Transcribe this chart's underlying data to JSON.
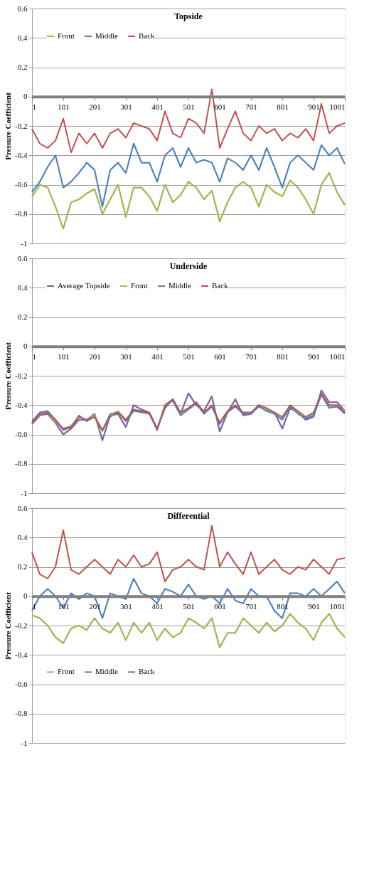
{
  "chart_data": [
    {
      "type": "line",
      "title": "Topside",
      "ylabel": "Pressure Coefficient",
      "x": [
        1,
        26,
        51,
        76,
        101,
        126,
        151,
        176,
        201,
        226,
        251,
        276,
        301,
        326,
        351,
        376,
        401,
        426,
        451,
        476,
        501,
        526,
        551,
        576,
        601,
        626,
        651,
        676,
        701,
        726,
        751,
        776,
        801,
        826,
        851,
        876,
        901,
        926,
        951,
        976,
        1001
      ],
      "xlim": [
        1,
        1001
      ],
      "xticks": [
        1,
        101,
        201,
        301,
        401,
        501,
        601,
        701,
        801,
        901,
        1001
      ],
      "ylim": [
        -1,
        0.6
      ],
      "yticks": [
        -1,
        -0.8,
        -0.6,
        -0.4,
        -0.2,
        0,
        0.2,
        0.4,
        0.6
      ],
      "grid": "y",
      "legend": "top left",
      "series": [
        {
          "name": "Front",
          "color": "#9bbb59",
          "values": [
            -0.68,
            -0.6,
            -0.62,
            -0.75,
            -0.9,
            -0.72,
            -0.7,
            -0.66,
            -0.63,
            -0.8,
            -0.7,
            -0.6,
            -0.82,
            -0.62,
            -0.62,
            -0.68,
            -0.78,
            -0.6,
            -0.72,
            -0.67,
            -0.58,
            -0.62,
            -0.7,
            -0.64,
            -0.85,
            -0.72,
            -0.62,
            -0.58,
            -0.62,
            -0.75,
            -0.6,
            -0.65,
            -0.68,
            -0.57,
            -0.62,
            -0.7,
            -0.8,
            -0.6,
            -0.52,
            -0.65,
            -0.74
          ]
        },
        {
          "name": "Middle",
          "color": "#4f81bd",
          "values": [
            -0.65,
            -0.58,
            -0.48,
            -0.4,
            -0.62,
            -0.58,
            -0.52,
            -0.45,
            -0.5,
            -0.75,
            -0.5,
            -0.45,
            -0.52,
            -0.32,
            -0.45,
            -0.45,
            -0.58,
            -0.4,
            -0.35,
            -0.48,
            -0.35,
            -0.45,
            -0.43,
            -0.45,
            -0.58,
            -0.42,
            -0.45,
            -0.5,
            -0.4,
            -0.5,
            -0.35,
            -0.48,
            -0.62,
            -0.45,
            -0.4,
            -0.45,
            -0.5,
            -0.33,
            -0.4,
            -0.35,
            -0.46
          ]
        },
        {
          "name": "Back",
          "color": "#c0504d",
          "values": [
            -0.22,
            -0.32,
            -0.35,
            -0.3,
            -0.15,
            -0.38,
            -0.25,
            -0.32,
            -0.25,
            -0.35,
            -0.25,
            -0.22,
            -0.28,
            -0.18,
            -0.2,
            -0.22,
            -0.3,
            -0.1,
            -0.25,
            -0.28,
            -0.15,
            -0.18,
            -0.25,
            0.05,
            -0.35,
            -0.22,
            -0.1,
            -0.25,
            -0.3,
            -0.2,
            -0.25,
            -0.22,
            -0.3,
            -0.25,
            -0.28,
            -0.22,
            -0.3,
            -0.05,
            -0.25,
            -0.2,
            -0.18
          ]
        }
      ]
    },
    {
      "type": "line",
      "title": "Underside",
      "ylabel": "Pressure Coefficient",
      "x": [
        1,
        26,
        51,
        76,
        101,
        126,
        151,
        176,
        201,
        226,
        251,
        276,
        301,
        326,
        351,
        376,
        401,
        426,
        451,
        476,
        501,
        526,
        551,
        576,
        601,
        626,
        651,
        676,
        701,
        726,
        751,
        776,
        801,
        826,
        851,
        876,
        901,
        926,
        951,
        976,
        1001
      ],
      "xlim": [
        1,
        1001
      ],
      "xticks": [
        1,
        101,
        201,
        301,
        401,
        501,
        601,
        701,
        801,
        901,
        1001
      ],
      "ylim": [
        -1,
        0.6
      ],
      "yticks": [
        -1,
        -0.8,
        -0.6,
        -0.4,
        -0.2,
        0,
        0.2,
        0.4,
        0.6
      ],
      "grid": "y",
      "legend": "top left",
      "series": [
        {
          "name": "Average Topside",
          "color": "#8064a2",
          "values": [
            -0.53,
            -0.47,
            -0.46,
            -0.52,
            -0.6,
            -0.56,
            -0.5,
            -0.5,
            -0.46,
            -0.64,
            -0.47,
            -0.46,
            -0.55,
            -0.4,
            -0.43,
            -0.45,
            -0.56,
            -0.42,
            -0.36,
            -0.46,
            -0.32,
            -0.4,
            -0.44,
            -0.34,
            -0.58,
            -0.45,
            -0.36,
            -0.47,
            -0.46,
            -0.4,
            -0.44,
            -0.45,
            -0.56,
            -0.42,
            -0.45,
            -0.5,
            -0.48,
            -0.3,
            -0.38,
            -0.38,
            -0.44
          ]
        },
        {
          "name": "Front",
          "color": "#9bbb59",
          "values": [
            -0.52,
            -0.46,
            -0.45,
            -0.51,
            -0.56,
            -0.54,
            -0.48,
            -0.5,
            -0.47,
            -0.58,
            -0.47,
            -0.44,
            -0.5,
            -0.44,
            -0.44,
            -0.46,
            -0.57,
            -0.4,
            -0.37,
            -0.46,
            -0.42,
            -0.38,
            -0.45,
            -0.41,
            -0.52,
            -0.44,
            -0.41,
            -0.45,
            -0.45,
            -0.41,
            -0.43,
            -0.46,
            -0.49,
            -0.41,
            -0.45,
            -0.49,
            -0.46,
            -0.33,
            -0.41,
            -0.41,
            -0.44
          ]
        },
        {
          "name": "Middle",
          "color": "#4f81bd",
          "values": [
            -0.51,
            -0.45,
            -0.44,
            -0.5,
            -0.57,
            -0.55,
            -0.47,
            -0.51,
            -0.48,
            -0.57,
            -0.48,
            -0.45,
            -0.51,
            -0.44,
            -0.45,
            -0.46,
            -0.56,
            -0.41,
            -0.37,
            -0.47,
            -0.43,
            -0.39,
            -0.46,
            -0.41,
            -0.53,
            -0.45,
            -0.41,
            -0.46,
            -0.46,
            -0.41,
            -0.44,
            -0.46,
            -0.5,
            -0.41,
            -0.46,
            -0.49,
            -0.47,
            -0.33,
            -0.42,
            -0.41,
            -0.46
          ]
        },
        {
          "name": "Back",
          "color": "#c0504d",
          "values": [
            -0.52,
            -0.46,
            -0.45,
            -0.5,
            -0.56,
            -0.55,
            -0.48,
            -0.5,
            -0.48,
            -0.57,
            -0.46,
            -0.45,
            -0.5,
            -0.43,
            -0.44,
            -0.45,
            -0.57,
            -0.4,
            -0.36,
            -0.45,
            -0.42,
            -0.38,
            -0.45,
            -0.4,
            -0.52,
            -0.44,
            -0.4,
            -0.45,
            -0.45,
            -0.4,
            -0.42,
            -0.45,
            -0.48,
            -0.4,
            -0.44,
            -0.48,
            -0.45,
            -0.32,
            -0.4,
            -0.4,
            -0.45
          ]
        }
      ]
    },
    {
      "type": "line",
      "title": "Differential",
      "ylabel": "Pressure Coefficient",
      "x": [
        1,
        26,
        51,
        76,
        101,
        126,
        151,
        176,
        201,
        226,
        251,
        276,
        301,
        326,
        351,
        376,
        401,
        426,
        451,
        476,
        501,
        526,
        551,
        576,
        601,
        626,
        651,
        676,
        701,
        726,
        751,
        776,
        801,
        826,
        851,
        876,
        901,
        926,
        951,
        976,
        1001
      ],
      "xlim": [
        1,
        1001
      ],
      "xticks": [
        1,
        101,
        201,
        301,
        401,
        501,
        601,
        701,
        801,
        901,
        1001
      ],
      "ylim": [
        -1,
        0.6
      ],
      "yticks": [
        -1,
        -0.8,
        -0.6,
        -0.4,
        -0.2,
        0,
        0.2,
        0.4,
        0.6
      ],
      "grid": "y",
      "legend": "left",
      "series": [
        {
          "name": "Front",
          "color": "#9bbb59",
          "values": [
            -0.13,
            -0.15,
            -0.2,
            -0.28,
            -0.32,
            -0.22,
            -0.2,
            -0.23,
            -0.15,
            -0.22,
            -0.25,
            -0.18,
            -0.3,
            -0.18,
            -0.25,
            -0.18,
            -0.3,
            -0.22,
            -0.28,
            -0.25,
            -0.15,
            -0.18,
            -0.22,
            -0.15,
            -0.35,
            -0.25,
            -0.25,
            -0.15,
            -0.2,
            -0.25,
            -0.18,
            -0.24,
            -0.2,
            -0.12,
            -0.18,
            -0.22,
            -0.3,
            -0.18,
            -0.12,
            -0.22,
            -0.28
          ]
        },
        {
          "name": "Middle",
          "color": "#4f81bd",
          "values": [
            -0.1,
            0.0,
            0.05,
            0.0,
            -0.08,
            0.02,
            -0.02,
            0.02,
            0.0,
            -0.15,
            0.02,
            0.0,
            -0.02,
            0.12,
            0.02,
            0.0,
            -0.05,
            0.05,
            0.03,
            0.0,
            0.08,
            0.0,
            -0.02,
            0.0,
            -0.05,
            0.05,
            -0.03,
            -0.05,
            0.05,
            0.0,
            0.0,
            -0.1,
            -0.15,
            0.02,
            0.02,
            0.0,
            0.05,
            0.0,
            0.05,
            0.1,
            0.02
          ]
        },
        {
          "name": "Back",
          "color": "#c0504d",
          "values": [
            0.3,
            0.15,
            0.12,
            0.2,
            0.45,
            0.18,
            0.15,
            0.2,
            0.25,
            0.2,
            0.15,
            0.25,
            0.2,
            0.28,
            0.2,
            0.22,
            0.3,
            0.1,
            0.18,
            0.2,
            0.25,
            0.2,
            0.18,
            0.48,
            0.2,
            0.3,
            0.22,
            0.15,
            0.3,
            0.15,
            0.2,
            0.25,
            0.18,
            0.15,
            0.2,
            0.18,
            0.25,
            0.2,
            0.15,
            0.25,
            0.26
          ]
        }
      ]
    }
  ]
}
